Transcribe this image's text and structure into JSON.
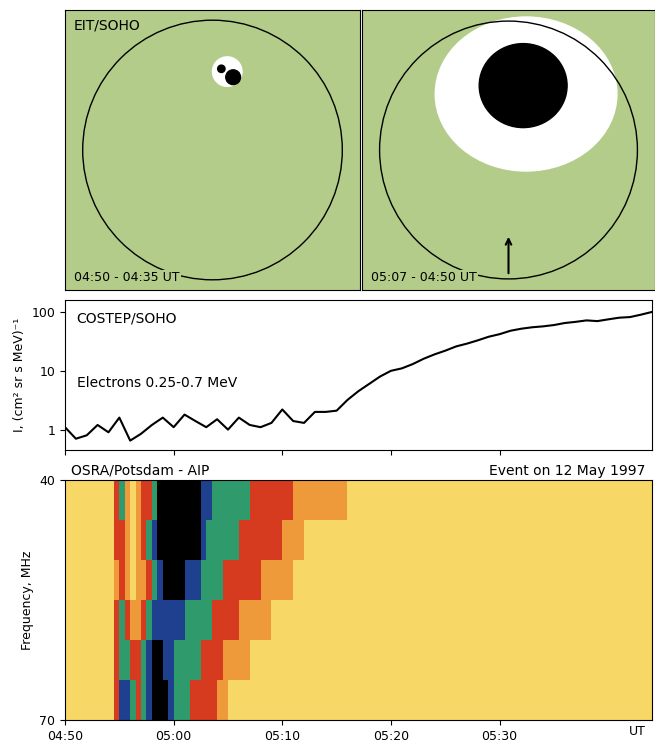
{
  "chart_data": [
    {
      "type": "image",
      "title": "EIT/SOHO",
      "panel_labels": [
        "04:50 - 04:35 UT",
        "05:07 - 04:50 UT"
      ]
    },
    {
      "type": "line",
      "title": "COSTEP/SOHO",
      "ylabel": "I, (cm² sr s MeV)⁻¹",
      "log": "y",
      "tick_labels": "y",
      "xlim": [
        290,
        344
      ],
      "ylim": [
        0.45,
        160
      ],
      "yticks": [
        1,
        10,
        100
      ],
      "x": [
        290,
        291,
        292,
        293,
        294,
        295,
        296,
        297,
        298,
        299,
        300,
        301,
        302,
        303,
        304,
        305,
        306,
        307,
        308,
        309,
        310,
        311,
        312,
        313,
        314,
        315,
        316,
        317,
        318,
        319,
        320,
        321,
        322,
        323,
        324,
        325,
        326,
        327,
        328,
        329,
        330,
        331,
        332,
        333,
        334,
        335,
        336,
        337,
        338,
        339,
        340,
        341,
        342,
        343,
        344
      ],
      "series": [
        {
          "name": "Electrons 0.25-0.7 MeV",
          "color": "#000000",
          "values": [
            1.1,
            0.7,
            0.8,
            1.2,
            0.9,
            1.6,
            0.65,
            0.85,
            1.2,
            1.6,
            1.1,
            1.8,
            1.4,
            1.1,
            1.5,
            1.0,
            1.6,
            1.2,
            1.1,
            1.3,
            2.2,
            1.4,
            1.3,
            2.0,
            2.0,
            2.1,
            3.2,
            4.5,
            6.0,
            8.0,
            10,
            11,
            13,
            16,
            19,
            22,
            26,
            29,
            33,
            38,
            42,
            48,
            52,
            55,
            57,
            60,
            65,
            68,
            72,
            70,
            75,
            80,
            82,
            90,
            100
          ]
        }
      ]
    },
    {
      "type": "heatmap",
      "title": "OSRA/Potsdam - AIP",
      "subtitle": "Event on 12 May 1997",
      "xlabel": "UT",
      "ylabel": "Frequency, MHz",
      "xlim": [
        290,
        344
      ],
      "ylim": [
        70,
        40
      ],
      "xticks": [
        {
          "value": 290,
          "label": "04:50"
        },
        {
          "value": 300,
          "label": "05:00"
        },
        {
          "value": 310,
          "label": "05:10"
        },
        {
          "value": 320,
          "label": "05:20"
        },
        {
          "value": 330,
          "label": "05:30"
        }
      ],
      "yticks": [
        40,
        70
      ],
      "x_edges": [
        290,
        294.5,
        295,
        295.5,
        296,
        296.5,
        297,
        297.5,
        298,
        298.5,
        299,
        299.5,
        300,
        300.5,
        301,
        301.5,
        302,
        302.5,
        303,
        303.5,
        304,
        304.5,
        305,
        306,
        307,
        308,
        309,
        310,
        311,
        312,
        316,
        344
      ],
      "y_edges": [
        40,
        45,
        50,
        55,
        60,
        65,
        70
      ],
      "cells": [
        [
          0,
          2,
          3,
          1,
          0,
          1,
          2,
          2,
          3,
          5,
          5,
          5,
          5,
          5,
          5,
          5,
          5,
          4,
          4,
          3,
          3,
          3,
          3,
          3,
          2,
          2,
          2,
          2,
          1,
          1,
          0
        ],
        [
          0,
          2,
          2,
          1,
          0,
          1,
          2,
          3,
          4,
          5,
          5,
          5,
          5,
          5,
          5,
          5,
          5,
          4,
          3,
          3,
          3,
          3,
          3,
          2,
          2,
          2,
          2,
          1,
          1,
          0,
          0
        ],
        [
          0,
          1,
          2,
          1,
          0,
          1,
          1,
          2,
          3,
          4,
          5,
          5,
          5,
          5,
          4,
          4,
          4,
          3,
          3,
          3,
          3,
          2,
          2,
          2,
          2,
          1,
          1,
          1,
          0,
          0,
          0
        ],
        [
          0,
          2,
          3,
          2,
          1,
          1,
          2,
          3,
          4,
          4,
          4,
          4,
          4,
          4,
          3,
          3,
          3,
          3,
          3,
          2,
          2,
          2,
          2,
          1,
          1,
          1,
          0,
          0,
          0,
          0,
          0
        ],
        [
          0,
          2,
          3,
          3,
          2,
          2,
          3,
          4,
          5,
          5,
          4,
          4,
          3,
          3,
          3,
          3,
          3,
          2,
          2,
          2,
          2,
          1,
          1,
          1,
          0,
          0,
          0,
          0,
          0,
          0,
          0
        ],
        [
          0,
          2,
          4,
          4,
          3,
          2,
          3,
          4,
          5,
          5,
          5,
          4,
          3,
          3,
          3,
          2,
          2,
          2,
          2,
          2,
          1,
          1,
          0,
          0,
          0,
          0,
          0,
          0,
          0,
          0,
          0
        ]
      ]
    }
  ]
}
